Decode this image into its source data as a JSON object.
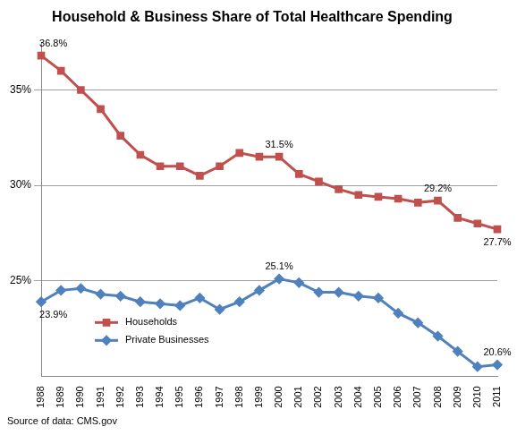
{
  "chart_data": {
    "type": "line",
    "title": "Household & Business Share of Total Healthcare Spending",
    "source": "Source of data: CMS.gov",
    "categories": [
      "1988",
      "1989",
      "1990",
      "1991",
      "1992",
      "1993",
      "1994",
      "1995",
      "1996",
      "1997",
      "1998",
      "1999",
      "2000",
      "2001",
      "2002",
      "2003",
      "2004",
      "2005",
      "2006",
      "2007",
      "2008",
      "2009",
      "2010",
      "2011"
    ],
    "series": [
      {
        "name": "Households",
        "color": "#c0504d",
        "marker": "square",
        "line_style": "solid",
        "values": [
          36.8,
          36.0,
          35.0,
          34.0,
          32.6,
          31.6,
          31.0,
          31.0,
          30.5,
          31.0,
          31.7,
          31.5,
          31.5,
          30.6,
          30.2,
          29.8,
          29.5,
          29.4,
          29.3,
          29.1,
          29.2,
          28.3,
          28.0,
          27.7
        ],
        "value_labels": [
          "36.8%",
          null,
          null,
          null,
          null,
          null,
          null,
          null,
          null,
          null,
          null,
          null,
          "31.5%",
          null,
          null,
          null,
          null,
          null,
          null,
          null,
          "29.2%",
          null,
          null,
          "27.7%"
        ]
      },
      {
        "name": "Private Businesses",
        "color": "#4f81bd",
        "marker": "diamond",
        "line_style": "solid",
        "values": [
          23.9,
          24.5,
          24.6,
          24.3,
          24.2,
          23.9,
          23.8,
          23.7,
          24.1,
          23.5,
          23.9,
          24.5,
          25.1,
          24.9,
          24.4,
          24.4,
          24.2,
          24.1,
          23.3,
          22.8,
          22.1,
          21.3,
          20.5,
          20.6
        ],
        "value_labels": [
          "23.9%",
          null,
          null,
          null,
          null,
          null,
          null,
          null,
          null,
          null,
          null,
          null,
          "25.1%",
          null,
          null,
          null,
          null,
          null,
          null,
          null,
          null,
          null,
          null,
          "20.6%"
        ]
      }
    ],
    "ylim": [
      20,
      37.5
    ],
    "yticks": [
      {
        "value": 25,
        "label": "25%"
      },
      {
        "value": 30,
        "label": "30%"
      },
      {
        "value": 35,
        "label": "35%"
      }
    ],
    "grid": true,
    "legend": "lower left",
    "data_labels": true
  }
}
